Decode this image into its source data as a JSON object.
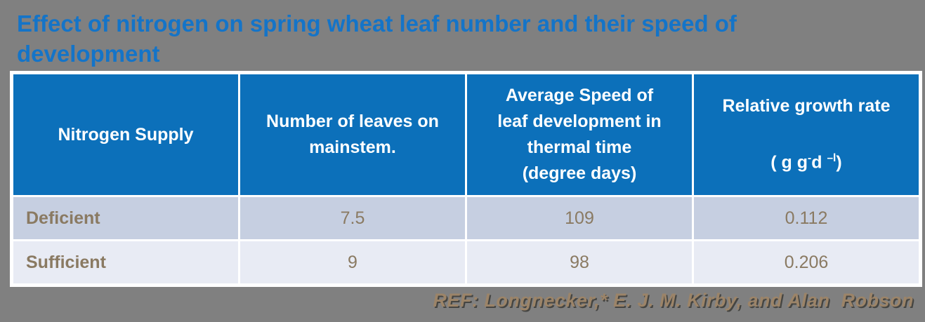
{
  "slide": {
    "title_line1": "Effect of nitrogen on spring wheat leaf number and their speed of",
    "title_line2": "development",
    "reference": "REF: Longnecker,* E. J. M. Kirby, and Alan  Robson"
  },
  "colors": {
    "background": "#808080",
    "title_blue": "#1474C8",
    "header_blue": "#0C70BA",
    "header_text": "#FFFFFF",
    "row_deficient_bg": "#C6CFE1",
    "row_sufficient_bg": "#E8EBF4",
    "data_text_brown": "#8A7A62",
    "reference_text": "#9C8468",
    "table_border": "#FFFFFF"
  },
  "table": {
    "headers": {
      "col1": "Nitrogen Supply",
      "col2": "Number of leaves on\nmainstem.",
      "col3": "Average Speed of\nleaf development in\nthermal time\n(degree days)",
      "col4_line1": "Relative growth rate",
      "col4_unit": {
        "p1": "( g g",
        "sup1": "-",
        "p2": "d ",
        "sup2": "–l",
        "p3": ")"
      }
    },
    "rows": [
      {
        "supply": "Deficient",
        "leaves": "7.5",
        "speed": "109",
        "growth": "0.112"
      },
      {
        "supply": "Sufficient",
        "leaves": "9",
        "speed": "98",
        "growth": "0.206"
      }
    ]
  },
  "chart_data": {
    "type": "table",
    "title": "Effect of nitrogen on spring wheat leaf number and their speed of development",
    "columns": [
      "Nitrogen Supply",
      "Number of leaves on mainstem.",
      "Average Speed of leaf development in thermal time (degree days)",
      "Relative growth rate ( g g-d -l)"
    ],
    "rows": [
      [
        "Deficient",
        7.5,
        109,
        0.112
      ],
      [
        "Sufficient",
        9,
        98,
        0.206
      ]
    ],
    "source": "REF: Longnecker,* E. J. M. Kirby, and Alan  Robson"
  }
}
